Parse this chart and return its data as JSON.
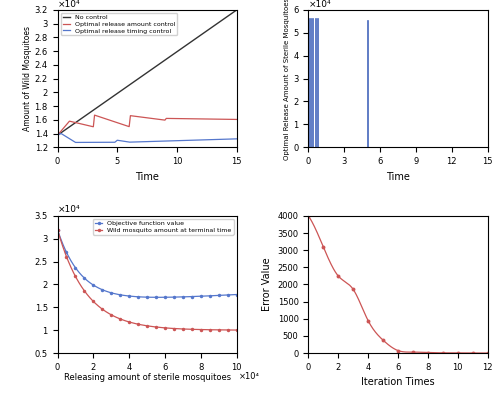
{
  "subplot_a": {
    "xlabel": "Time",
    "ylabel": "Amount of Wild Mosquitoes",
    "xlim": [
      0,
      15
    ],
    "ylim": [
      12000.0,
      32000.0
    ],
    "ytick_vals": [
      12000.0,
      14000.0,
      16000.0,
      18000.0,
      20000.0,
      22000.0,
      24000.0,
      26000.0,
      28000.0,
      30000.0,
      32000.0
    ],
    "ytick_labels": [
      "1.2",
      "1.4",
      "1.6",
      "1.8",
      "2",
      "2.2",
      "2.4",
      "2.6",
      "2.8",
      "3",
      "3.2"
    ],
    "xticks": [
      0,
      5,
      10,
      15
    ],
    "legend": [
      "No control",
      "Optimal release amount control",
      "Optimal release timing control"
    ],
    "colors": [
      "#333333",
      "#cc5555",
      "#5577cc"
    ],
    "scale_label": "×10⁴"
  },
  "subplot_b": {
    "xlabel": "Time",
    "ylabel": "Optimal Release Amount of Sterile Mosquitoes",
    "xlim": [
      0,
      15
    ],
    "ylim": [
      0,
      60000.0
    ],
    "ytick_vals": [
      0,
      10000.0,
      20000.0,
      30000.0,
      40000.0,
      50000.0,
      60000.0
    ],
    "ytick_labels": [
      "0",
      "1",
      "2",
      "3",
      "4",
      "5",
      "6"
    ],
    "xticks": [
      0,
      3,
      6,
      9,
      12,
      15
    ],
    "color": "#4466bb",
    "scale_label": "×10⁴",
    "spike_times": [
      0.05,
      0.2,
      0.4,
      0.6,
      0.8,
      5.0
    ],
    "spike_heights": [
      56000.0,
      56000.0,
      56000.0,
      56000.0,
      56000.0,
      55000.0
    ]
  },
  "subplot_c": {
    "xlabel": "Releasing amount of sterile mosquitoes",
    "xlim": [
      0,
      100000.0
    ],
    "ylim": [
      5000.0,
      35000.0
    ],
    "ytick_vals": [
      5000.0,
      10000.0,
      15000.0,
      20000.0,
      25000.0,
      30000.0,
      35000.0
    ],
    "ytick_labels": [
      "0.5",
      "1",
      "1.5",
      "2",
      "2.5",
      "3",
      "3.5"
    ],
    "xtick_vals": [
      0,
      20000.0,
      40000.0,
      60000.0,
      80000.0,
      100000.0
    ],
    "xtick_labels": [
      "0",
      "2",
      "4",
      "6",
      "8",
      "10"
    ],
    "legend": [
      "Objective function value",
      "Wild mosquito amount at terminal time"
    ],
    "colors": [
      "#5577cc",
      "#cc5555"
    ],
    "scale_label_x": "×10⁴",
    "scale_label_y": "×10⁴"
  },
  "subplot_d": {
    "xlabel": "Iteration Times",
    "ylabel": "Error Value",
    "xlim": [
      0,
      12
    ],
    "ylim": [
      0,
      4000
    ],
    "yticks": [
      0,
      500,
      1000,
      1500,
      2000,
      2500,
      3000,
      3500,
      4000
    ],
    "xticks": [
      0,
      2,
      4,
      6,
      8,
      10,
      12
    ],
    "color": "#cc5555"
  },
  "figure_bgcolor": "#ffffff"
}
